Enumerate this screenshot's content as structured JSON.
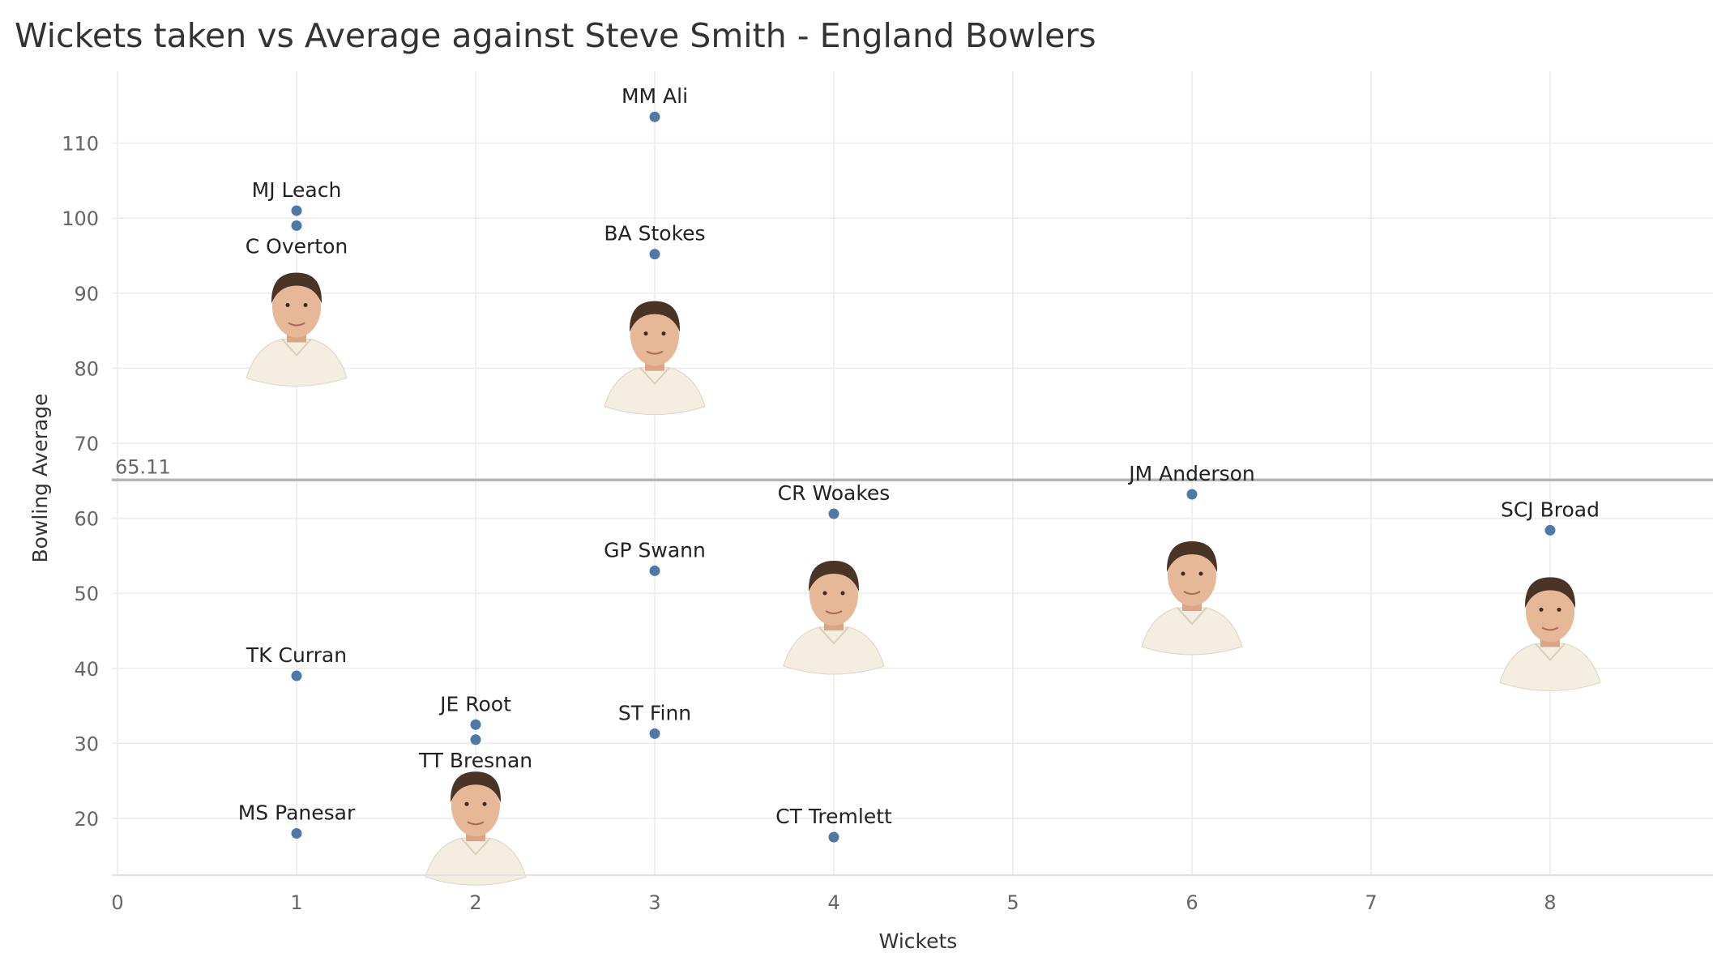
{
  "chart_data": {
    "type": "scatter",
    "title": "Wickets taken vs Average against Steve Smith - England Bowlers",
    "xlabel": "Wickets",
    "ylabel": "Bowling Average",
    "xlim": [
      0,
      9
    ],
    "ylim": [
      12,
      119
    ],
    "x_ticks": [
      "0",
      "1",
      "2",
      "3",
      "4",
      "5",
      "6",
      "7",
      "8"
    ],
    "y_ticks": [
      "20",
      "30",
      "40",
      "50",
      "60",
      "70",
      "80",
      "90",
      "100",
      "110"
    ],
    "grid": true,
    "reference_line": {
      "value": 65.11,
      "label": "65.11"
    },
    "point_color": "#4e79a7",
    "points": [
      {
        "name": "MM Ali",
        "x": 3,
        "y": 113.5,
        "label_pos": "above"
      },
      {
        "name": "MJ Leach",
        "x": 1,
        "y": 101,
        "label_pos": "above"
      },
      {
        "name": "C Overton",
        "x": 1,
        "y": 99,
        "label_pos": "below",
        "photo": true
      },
      {
        "name": "BA Stokes",
        "x": 3,
        "y": 95.2,
        "label_pos": "above",
        "photo": true
      },
      {
        "name": "JM Anderson",
        "x": 6,
        "y": 63.2,
        "label_pos": "above",
        "photo": true
      },
      {
        "name": "CR Woakes",
        "x": 4,
        "y": 60.6,
        "label_pos": "above",
        "photo": true
      },
      {
        "name": "SCJ Broad",
        "x": 8,
        "y": 58.4,
        "label_pos": "above",
        "photo": true
      },
      {
        "name": "GP Swann",
        "x": 3,
        "y": 53,
        "label_pos": "above"
      },
      {
        "name": "TK Curran",
        "x": 1,
        "y": 39,
        "label_pos": "above"
      },
      {
        "name": "JE Root",
        "x": 2,
        "y": 32.5,
        "label_pos": "above",
        "photo": true
      },
      {
        "name": "TT Bresnan",
        "x": 2,
        "y": 30.5,
        "label_pos": "below"
      },
      {
        "name": "ST Finn",
        "x": 3,
        "y": 31.3,
        "label_pos": "above"
      },
      {
        "name": "MS Panesar",
        "x": 1,
        "y": 18,
        "label_pos": "above"
      },
      {
        "name": "CT Tremlett",
        "x": 4,
        "y": 17.5,
        "label_pos": "above"
      }
    ]
  }
}
